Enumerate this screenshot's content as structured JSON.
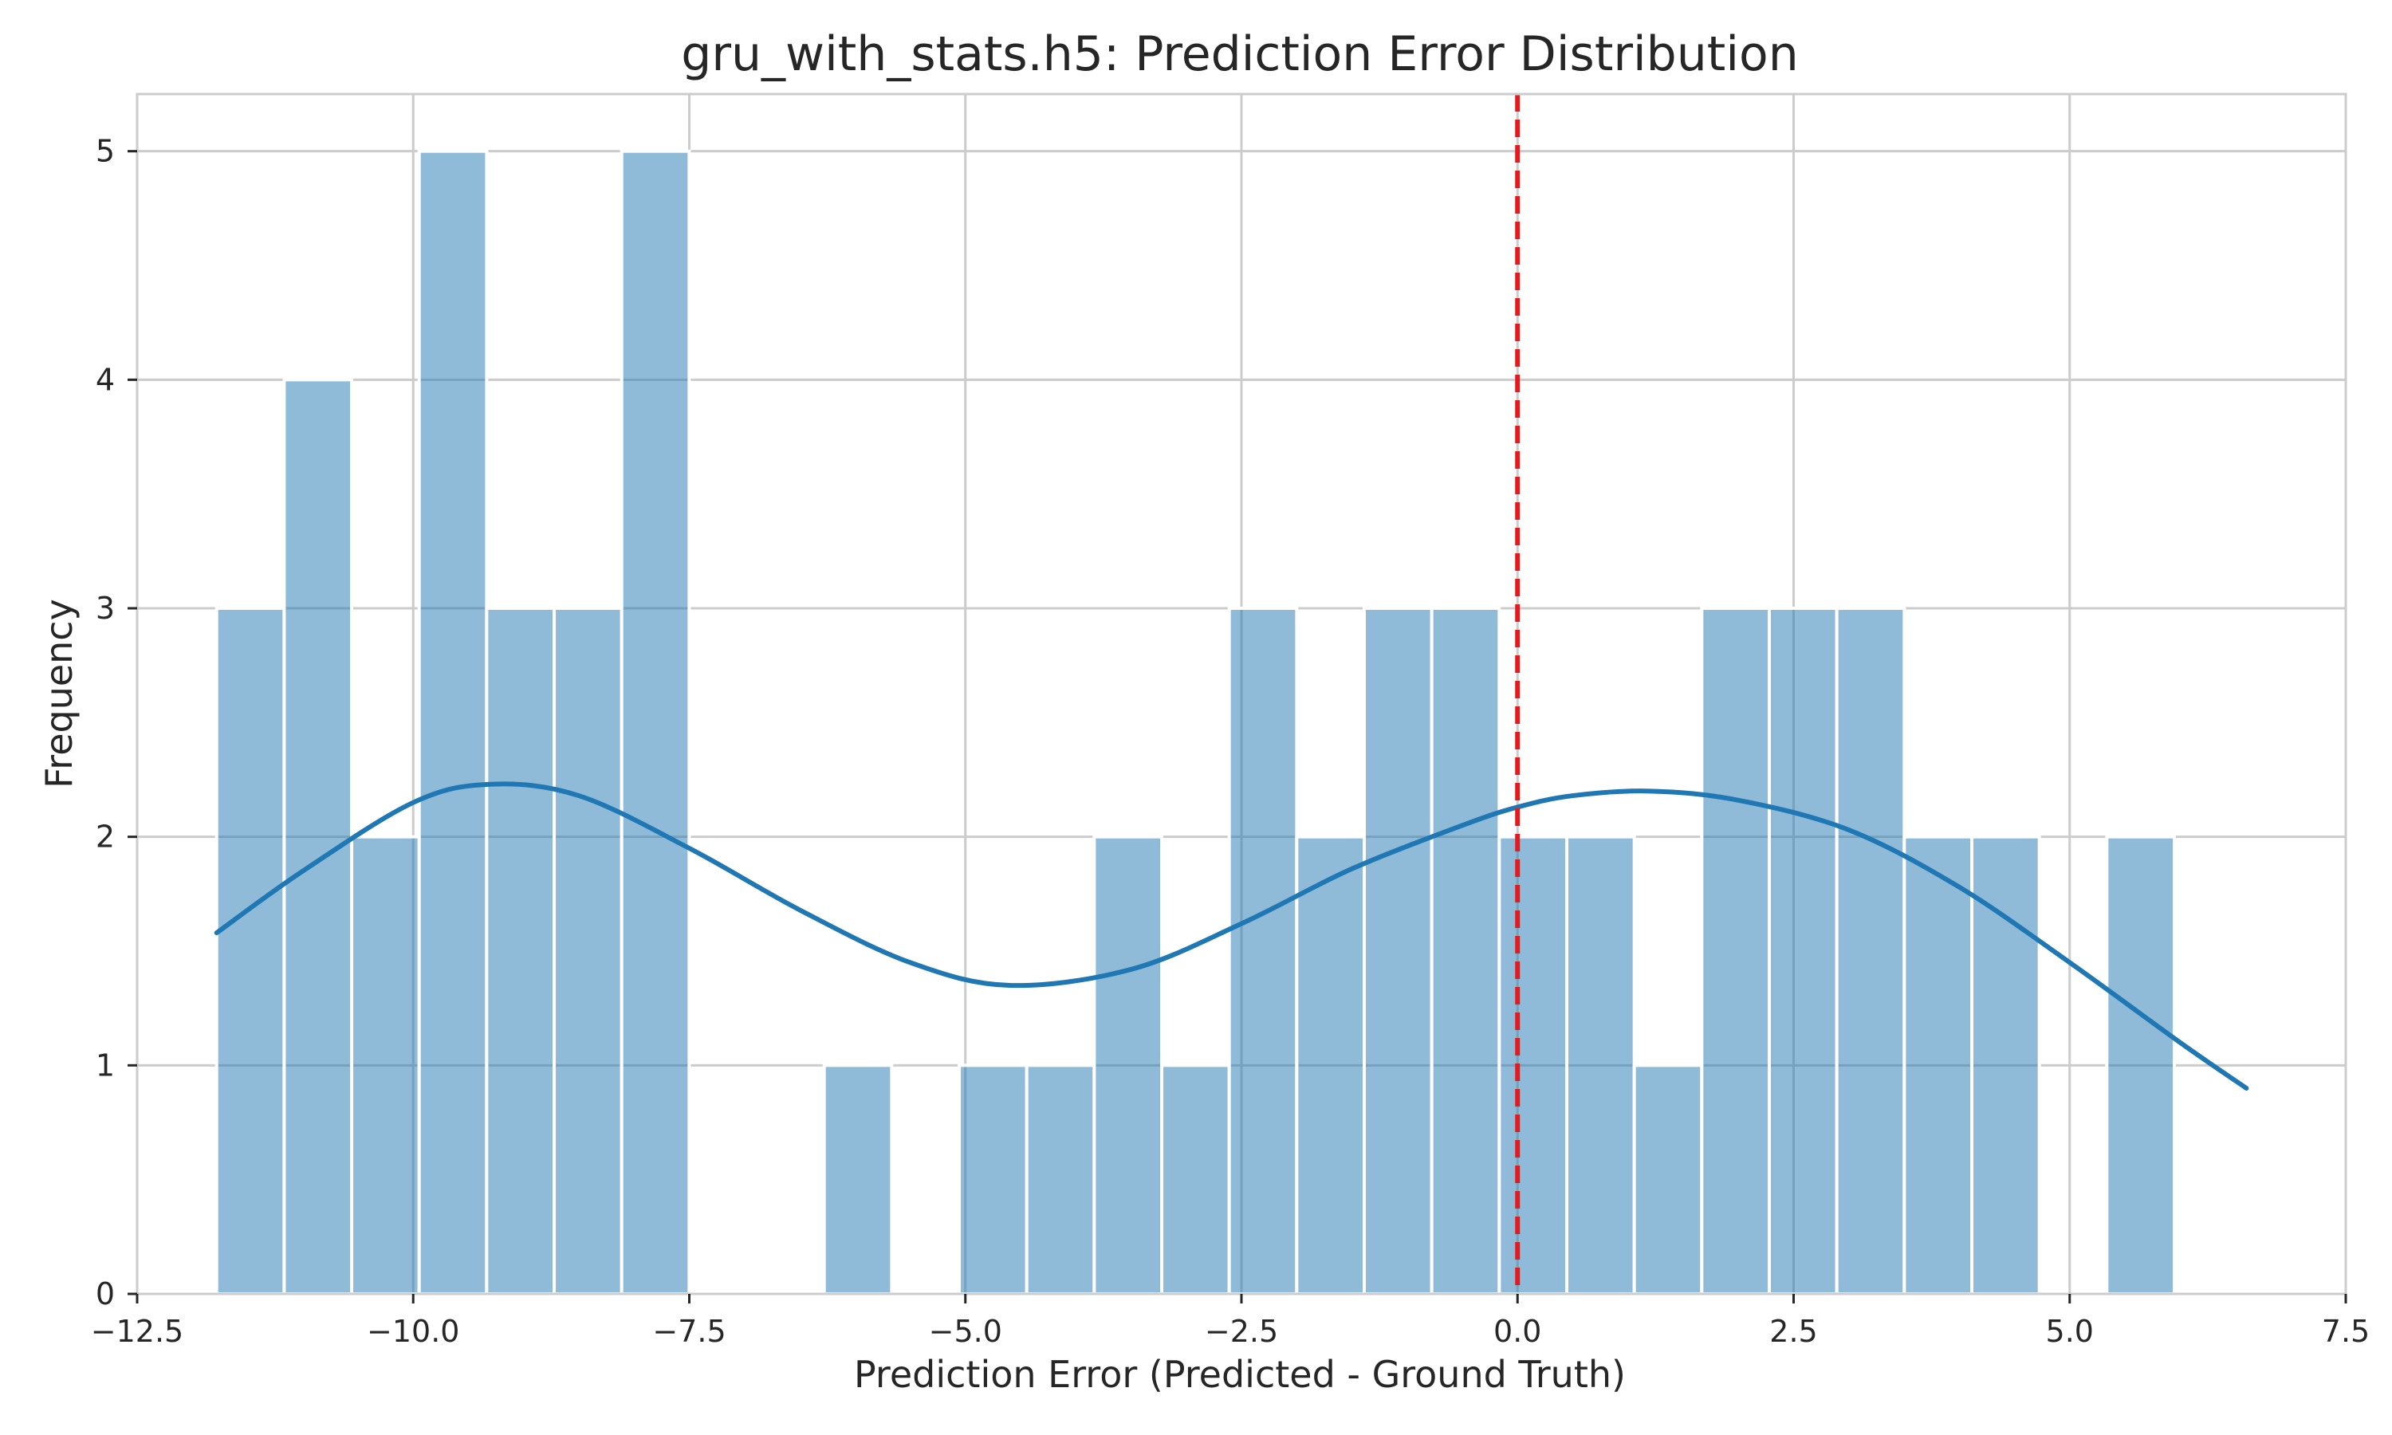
{
  "chart_data": {
    "type": "histogram",
    "title": "gru_with_stats.h5: Prediction Error Distribution",
    "xlabel": "Prediction Error (Predicted - Ground Truth)",
    "ylabel": "Frequency",
    "xlim": [
      -12.5,
      7.5
    ],
    "ylim": [
      0,
      5.25
    ],
    "xticks": [
      -12.5,
      -10.0,
      -7.5,
      -5.0,
      -2.5,
      0.0,
      2.5,
      5.0,
      7.5
    ],
    "xtick_labels": [
      "−12.5",
      "−10.0",
      "−7.5",
      "−5.0",
      "−2.5",
      "0.0",
      "2.5",
      "5.0",
      "7.5"
    ],
    "yticks": [
      0,
      1,
      2,
      3,
      4,
      5
    ],
    "ytick_labels": [
      "0",
      "1",
      "2",
      "3",
      "4",
      "5"
    ],
    "grid": true,
    "bin_start": -11.78,
    "bin_width": 0.6113,
    "counts": [
      3,
      4,
      2,
      5,
      3,
      3,
      5,
      0,
      0,
      1,
      0,
      1,
      1,
      2,
      1,
      3,
      2,
      3,
      3,
      2,
      2,
      1,
      3,
      3,
      3,
      2,
      2,
      0,
      2
    ],
    "bar_color": "#1f77b4",
    "bar_opacity": 0.5,
    "kde": {
      "color": "#1f77b4",
      "x": [
        -11.78,
        -11.0,
        -10.0,
        -9.3,
        -8.5,
        -7.5,
        -6.5,
        -5.5,
        -4.6,
        -3.5,
        -2.5,
        -1.5,
        -0.5,
        0.0,
        0.5,
        1.2,
        2.0,
        3.0,
        4.0,
        5.0,
        6.0,
        6.6
      ],
      "y": [
        1.58,
        1.85,
        2.15,
        2.23,
        2.18,
        1.95,
        1.68,
        1.45,
        1.35,
        1.42,
        1.62,
        1.86,
        2.05,
        2.13,
        2.18,
        2.2,
        2.16,
        2.03,
        1.78,
        1.45,
        1.1,
        0.9
      ]
    },
    "reference_line": {
      "x": 0.0,
      "color": "#e41a1c",
      "style": "dashed"
    }
  }
}
